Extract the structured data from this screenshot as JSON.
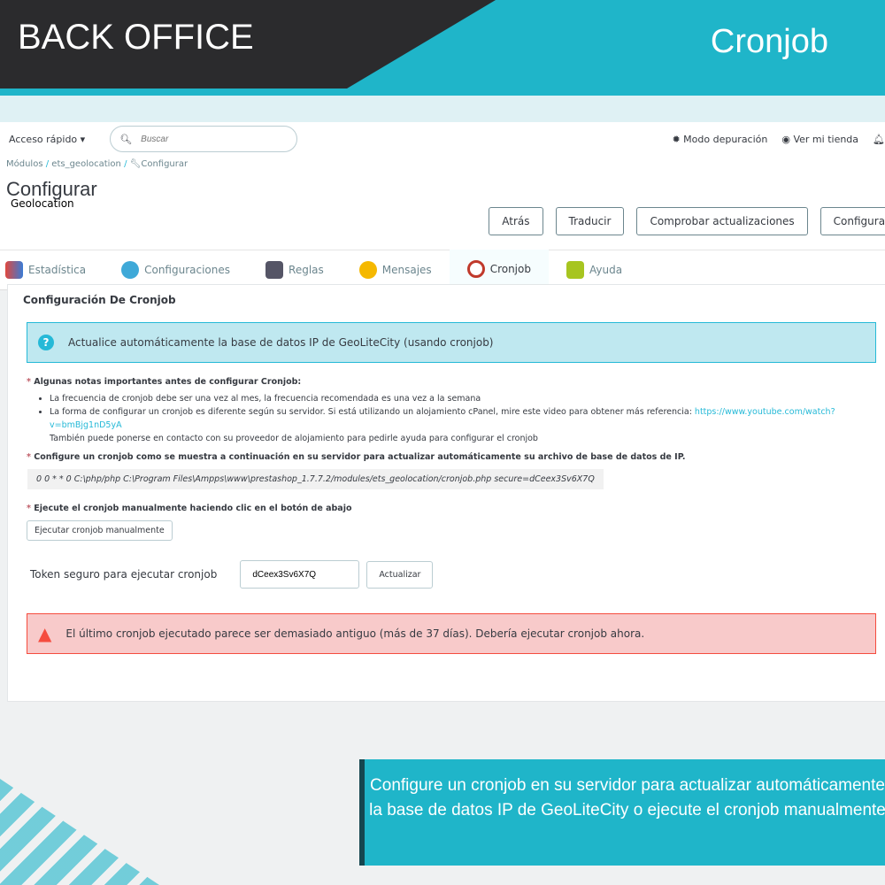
{
  "banner": {
    "left": "BACK OFFICE",
    "right": "Cronjob"
  },
  "topbar": {
    "quick_access": "Acceso rápido ▾",
    "search_placeholder": "Buscar",
    "debug": "Modo depuración",
    "view_store": "Ver mi tienda"
  },
  "breadcrumb": [
    "Módulos",
    "ets_geolocation",
    "Configurar"
  ],
  "header": {
    "title": "Configurar",
    "subtitle": "Geolocation",
    "buttons": [
      "Atrás",
      "Traducir",
      "Comprobar actualizaciones",
      "Configurar"
    ]
  },
  "tabs": [
    {
      "label": "Estadística",
      "icon": "chart-icon",
      "color": "#e0483e"
    },
    {
      "label": "Configuraciones",
      "icon": "gears-icon",
      "color": "#3fa9d8"
    },
    {
      "label": "Reglas",
      "icon": "gavel-icon",
      "color": "#445"
    },
    {
      "label": "Mensajes",
      "icon": "chat-icon",
      "color": "#f5b800"
    },
    {
      "label": "Cronjob",
      "icon": "clock-icon",
      "color": "#c0392b",
      "active": true
    },
    {
      "label": "Ayuda",
      "icon": "help-icon",
      "color": "#a7c520"
    }
  ],
  "panel": {
    "title": "Configuración De Cronjob",
    "info": "Actualice automáticamente la base de datos IP de GeoLiteCity (usando cronjob)",
    "notes_title": "Algunas notas importantes antes de configurar Cronjob:",
    "notes": [
      "La frecuencia de cronjob debe ser una vez al mes, la frecuencia recomendada es una vez a la semana",
      "La forma de configurar un cronjob es diferente según su servidor. Si está utilizando un alojamiento cPanel, mire este video para obtener más referencia: "
    ],
    "link": "https://www.youtube.com/watch?v=bmBjg1nD5yA",
    "note_extra": "También puede ponerse en contacto con su proveedor de alojamiento para pedirle ayuda para configurar el cronjob",
    "setup_title": "Configure un cronjob como se muestra a continuación en su servidor para actualizar automáticamente su archivo de base de datos de IP.",
    "command": "0 0 * * 0 C:\\php/php C:\\Program Files\\Ampps\\www\\prestashop_1.7.7.2/modules/ets_geolocation/cronjob.php secure=dCeex3Sv6X7Q",
    "manual_title": "Ejecute el cronjob manualmente haciendo clic en el botón de abajo",
    "manual_button": "Ejecutar cronjob manualmente",
    "token_label": "Token seguro para ejecutar cronjob",
    "token_value": "dCeex3Sv6X7Q",
    "update_button": "Actualizar",
    "alert": "El último cronjob ejecutado parece ser demasiado antiguo (más de 37 días). Debería ejecutar cronjob ahora."
  },
  "callout": "Configure un cronjob en su servidor para actualizar automáticamente la base de datos IP de GeoLiteCity o ejecute el cronjob manualmente"
}
